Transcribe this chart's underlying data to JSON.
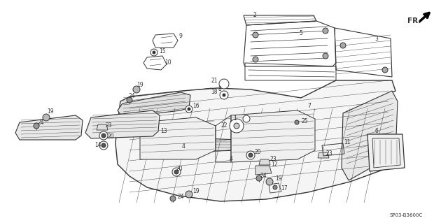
{
  "background_color": "#ffffff",
  "diagram_code": "SP03-B3600C",
  "fr_label": "FR.",
  "line_color": "#333333",
  "label_fontsize": 5.5,
  "diagram_code_fontsize": 5.0,
  "fr_fontsize": 7.5,
  "labels": [
    [
      "2",
      367,
      28
    ],
    [
      "5",
      430,
      52
    ],
    [
      "3",
      520,
      68
    ],
    [
      "21",
      330,
      118
    ],
    [
      "18",
      330,
      133
    ],
    [
      "1",
      353,
      168
    ],
    [
      "22",
      345,
      178
    ],
    [
      "7",
      430,
      162
    ],
    [
      "25",
      424,
      175
    ],
    [
      "9",
      248,
      58
    ],
    [
      "15",
      228,
      75
    ],
    [
      "10",
      228,
      90
    ],
    [
      "8",
      288,
      138
    ],
    [
      "19",
      196,
      128
    ],
    [
      "24",
      188,
      142
    ],
    [
      "19",
      68,
      168
    ],
    [
      "24",
      55,
      180
    ],
    [
      "23",
      148,
      182
    ],
    [
      "20",
      148,
      196
    ],
    [
      "14",
      138,
      205
    ],
    [
      "13",
      222,
      186
    ],
    [
      "16",
      268,
      160
    ],
    [
      "4",
      268,
      205
    ],
    [
      "4",
      320,
      225
    ],
    [
      "20",
      355,
      225
    ],
    [
      "6",
      530,
      196
    ],
    [
      "11",
      470,
      210
    ],
    [
      "23",
      460,
      222
    ],
    [
      "23",
      380,
      232
    ],
    [
      "12",
      372,
      242
    ],
    [
      "24",
      368,
      256
    ],
    [
      "19",
      386,
      260
    ],
    [
      "17",
      390,
      272
    ],
    [
      "20",
      248,
      248
    ],
    [
      "19",
      270,
      278
    ],
    [
      "24",
      248,
      285
    ]
  ]
}
